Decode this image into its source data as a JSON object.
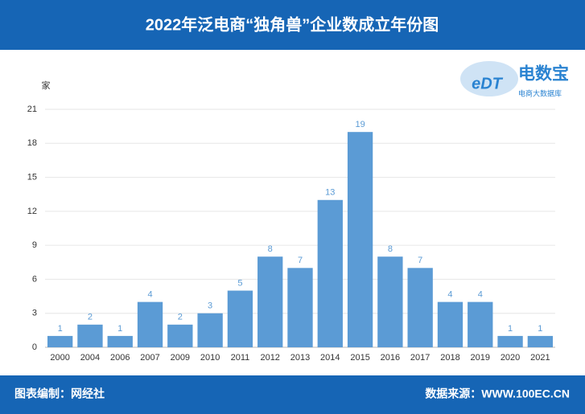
{
  "chart_data": {
    "type": "bar",
    "title": "2022年泛电商“独角兽”企业数成立年份图",
    "y_label": "家",
    "categories": [
      "2000",
      "2004",
      "2006",
      "2007",
      "2009",
      "2010",
      "2011",
      "2012",
      "2013",
      "2014",
      "2015",
      "2016",
      "2017",
      "2018",
      "2019",
      "2020",
      "2021"
    ],
    "values": [
      1,
      2,
      1,
      4,
      2,
      3,
      5,
      8,
      7,
      13,
      19,
      8,
      7,
      4,
      4,
      1,
      1
    ],
    "color": "#5b9bd5",
    "label_color": "#5b9bd5",
    "ylim": [
      0,
      21
    ],
    "yticks": [
      0,
      3,
      6,
      9,
      12,
      15,
      18,
      21
    ],
    "grid": true
  },
  "logo": {
    "mark": "eDT",
    "name": "电数宝",
    "tagline": "电商大数据库"
  },
  "footer": {
    "left": "图表编制：网经社",
    "right": "数据来源：WWW.100EC.CN"
  }
}
